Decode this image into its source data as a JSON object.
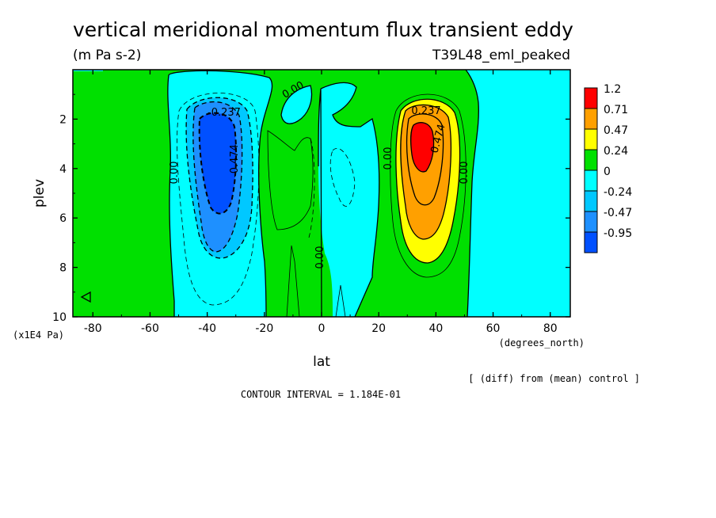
{
  "chart_data": {
    "type": "contour",
    "title": "vertical meridional momentum flux transient eddy",
    "units": "(m Pa s-2)",
    "experiment": "T39L48_eml_peaked",
    "xlabel": "lat",
    "x_units": "(degrees_north)",
    "ylabel": "plev",
    "y_units": "(x1E4 Pa)",
    "xlim": [
      -87,
      87
    ],
    "ylim": [
      10,
      0
    ],
    "x_ticks": [
      "-80",
      "-60",
      "-40",
      "-20",
      "0",
      "20",
      "40",
      "60",
      "80"
    ],
    "y_ticks": [
      "2",
      "4",
      "6",
      "8",
      "10"
    ],
    "contour_interval_text": "CONTOUR INTERVAL = 1.184E-01",
    "note": "[ (diff) from (mean) control ]",
    "legend": {
      "levels": [
        "1.2",
        "0.71",
        "0.47",
        "0.24",
        "0",
        "-0.24",
        "-0.47",
        "-0.95"
      ],
      "colors": [
        "#ff0000",
        "#ffa000",
        "#ffff00",
        "#00e000",
        "#00ffff",
        "#00c8ff",
        "#1e90ff",
        "#0050ff"
      ]
    },
    "contour_labels": [
      "-0.237",
      "-0.474",
      "0.00",
      "0.00",
      "0.00",
      "0.00",
      "0.00",
      "0.237",
      "0.474",
      "0.00"
    ],
    "extrema": [
      {
        "sign": "negative",
        "lat": -35,
        "plev": 3.6,
        "approx_value": -1.0
      },
      {
        "sign": "positive",
        "lat": 35,
        "plev": 3.2,
        "approx_value": 1.1
      }
    ],
    "grid": false
  }
}
